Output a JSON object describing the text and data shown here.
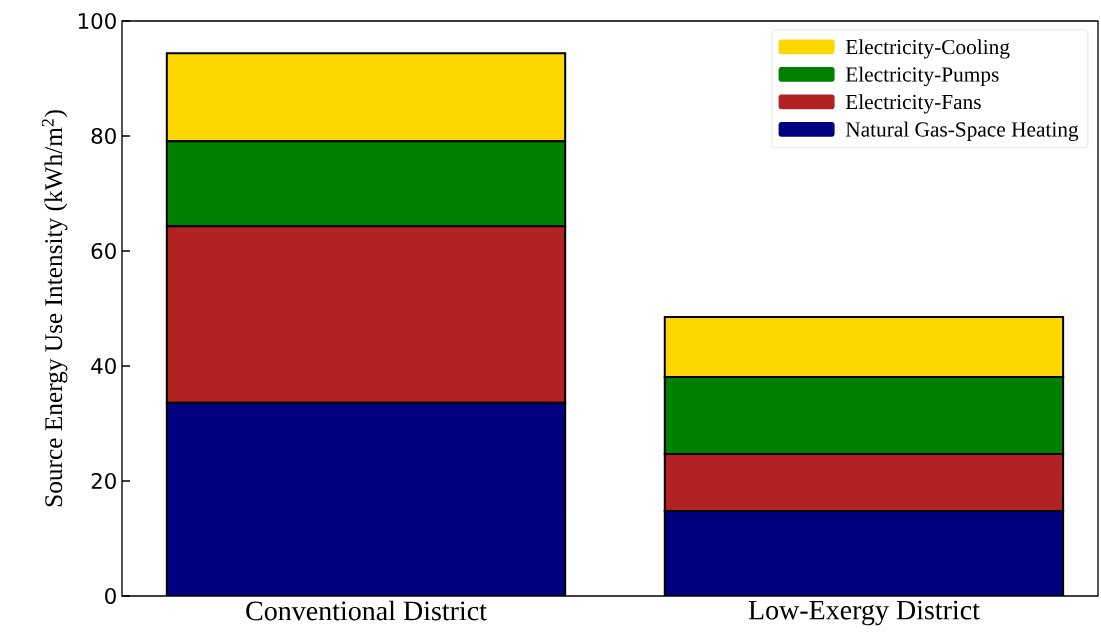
{
  "chart_data": {
    "type": "bar",
    "stacked": true,
    "ylabel": "Source Energy Use Intensity (kWh/m$^{2}$)",
    "categories": [
      "Conventional District",
      "Low-Exergy District"
    ],
    "series": [
      {
        "name": "Natural Gas-Space Heating",
        "color": "#000080",
        "values": [
          33.6,
          14.8
        ]
      },
      {
        "name": "Electricity-Fans",
        "color": "#b22222",
        "values": [
          30.7,
          9.9
        ]
      },
      {
        "name": "Electricity-Pumps",
        "color": "#008000",
        "values": [
          14.8,
          13.4
        ]
      },
      {
        "name": "Electricity-Cooling",
        "color": "#ffd700",
        "values": [
          15.3,
          10.4
        ]
      }
    ],
    "ylim": [
      0,
      100
    ],
    "yticks": [
      0,
      20,
      40,
      60,
      80,
      100
    ],
    "grid": false,
    "legend": "top right"
  }
}
